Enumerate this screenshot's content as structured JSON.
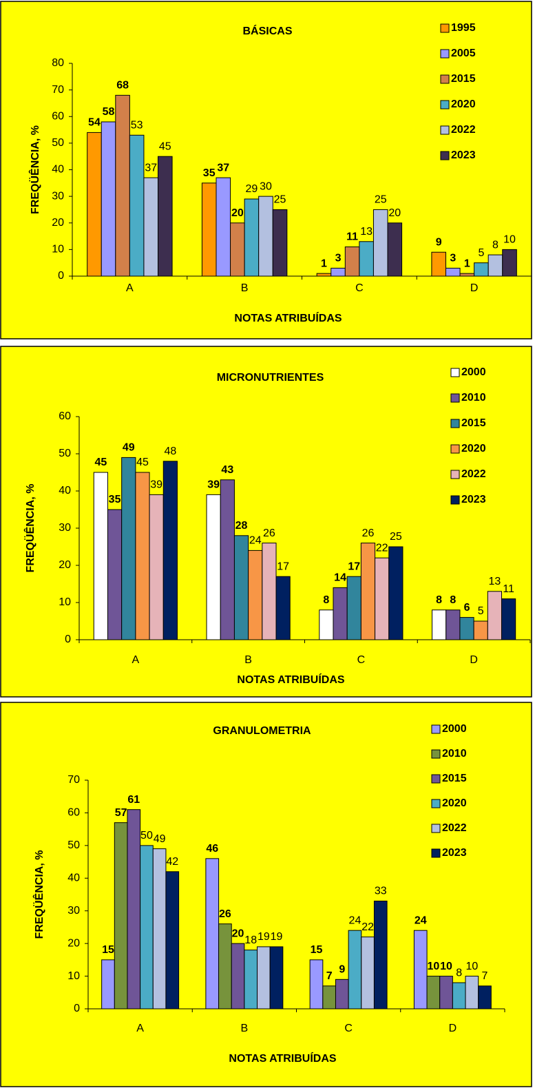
{
  "chart_data": [
    {
      "type": "bar",
      "title": "BÁSICAS",
      "x_label": "NOTAS ATRIBUÍDAS",
      "y_label": "FREQÜÊNCIA, %",
      "categories": [
        "A",
        "B",
        "C",
        "D"
      ],
      "ylim": [
        0,
        80
      ],
      "yticks": [
        0,
        10,
        20,
        30,
        40,
        50,
        60,
        70,
        80
      ],
      "legend": "upper right",
      "series": [
        {
          "name": "1995",
          "color": "#FF9900",
          "values": [
            54,
            35,
            1,
            9
          ]
        },
        {
          "name": "2005",
          "color": "#9999FF",
          "values": [
            58,
            37,
            3,
            3
          ]
        },
        {
          "name": "2015",
          "color": "#D2804A",
          "values": [
            68,
            20,
            11,
            1
          ]
        },
        {
          "name": "2020",
          "color": "#4BACC6",
          "values": [
            53,
            29,
            13,
            5
          ]
        },
        {
          "name": "2022",
          "color": "#B3C0E0",
          "values": [
            37,
            30,
            25,
            8
          ]
        },
        {
          "name": "2023",
          "color": "#3D2E4F",
          "values": [
            45,
            25,
            20,
            10
          ]
        }
      ]
    },
    {
      "type": "bar",
      "title": "MICRONUTRIENTES",
      "x_label": "NOTAS ATRIBUÍDAS",
      "y_label": "FREQÜÊNCIA, %",
      "categories": [
        "A",
        "B",
        "C",
        "D"
      ],
      "ylim": [
        0,
        60
      ],
      "yticks": [
        0,
        10,
        20,
        30,
        40,
        50,
        60
      ],
      "legend": "upper right",
      "series": [
        {
          "name": "2000",
          "color": "#FFFFFF",
          "values": [
            45,
            39,
            8,
            8
          ]
        },
        {
          "name": "2010",
          "color": "#6F5597",
          "values": [
            35,
            43,
            14,
            8
          ]
        },
        {
          "name": "2015",
          "color": "#31859C",
          "values": [
            49,
            28,
            17,
            6
          ]
        },
        {
          "name": "2020",
          "color": "#F79646",
          "values": [
            45,
            24,
            26,
            5
          ]
        },
        {
          "name": "2022",
          "color": "#E6B3B8",
          "values": [
            39,
            26,
            22,
            13
          ]
        },
        {
          "name": "2023",
          "color": "#002060",
          "values": [
            48,
            17,
            25,
            11
          ]
        }
      ]
    },
    {
      "type": "bar",
      "title": "GRANULOMETRIA",
      "x_label": "NOTAS ATRIBUÍDAS",
      "y_label": "FREQÜÊNCIA, %",
      "categories": [
        "A",
        "B",
        "C",
        "D"
      ],
      "ylim": [
        0,
        70
      ],
      "yticks": [
        0,
        10,
        20,
        30,
        40,
        50,
        60,
        70
      ],
      "legend": "upper right",
      "series": [
        {
          "name": "2000",
          "color": "#9999FF",
          "values": [
            15,
            46,
            15,
            24
          ]
        },
        {
          "name": "2010",
          "color": "#77933C",
          "values": [
            57,
            26,
            7,
            10
          ]
        },
        {
          "name": "2015",
          "color": "#6F5597",
          "values": [
            61,
            20,
            9,
            10
          ]
        },
        {
          "name": "2020",
          "color": "#4BACC6",
          "values": [
            50,
            18,
            24,
            8
          ]
        },
        {
          "name": "2022",
          "color": "#B3C0E0",
          "values": [
            49,
            19,
            22,
            10
          ]
        },
        {
          "name": "2023",
          "color": "#002060",
          "values": [
            42,
            19,
            33,
            7
          ]
        }
      ]
    }
  ]
}
